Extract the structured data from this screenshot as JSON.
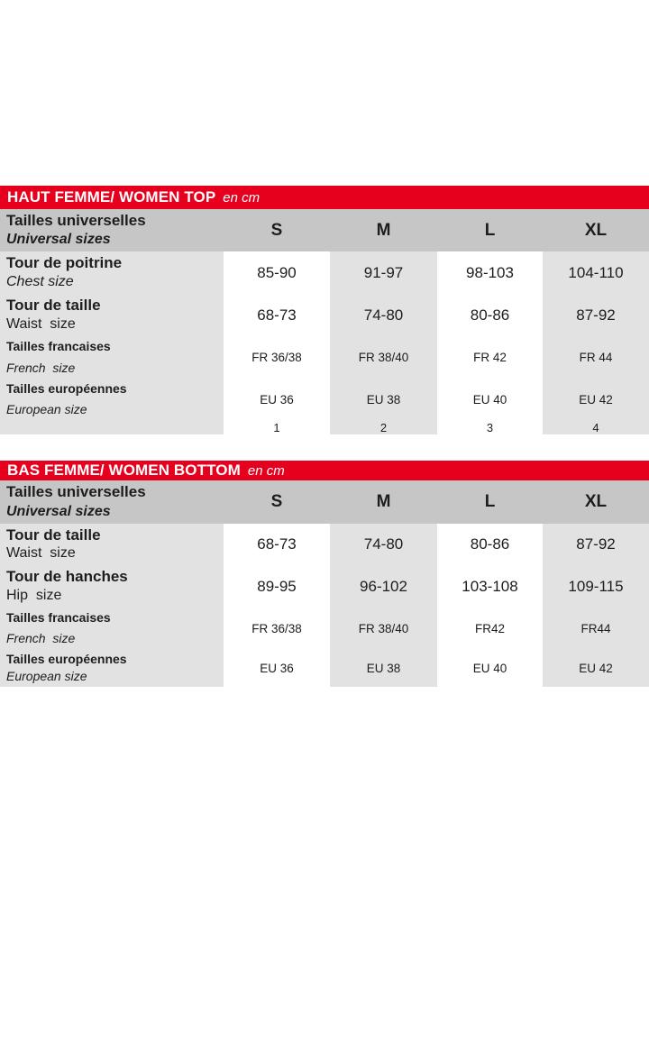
{
  "colors": {
    "accent_red": "#e7001e",
    "header_row_gray": "#c6c6c6",
    "column_gray": "#e2e2e2",
    "text": "#1d1d1b",
    "bar_text": "#ffffff"
  },
  "tables": [
    {
      "bar": {
        "title": "HAUT FEMME/ WOMEN TOP",
        "unit": "en cm"
      },
      "header": {
        "label": "Tailles universelles",
        "sublabel": "Universal sizes",
        "sizes": [
          "S",
          "M",
          "L",
          "XL"
        ]
      },
      "rows": [
        {
          "label": "Tour de poitrine",
          "sublabel": "Chest size",
          "values": [
            "85-90",
            "91-97",
            "98-103",
            "104-110"
          ]
        },
        {
          "label": "Tour de taille",
          "sublabel": "Waist  size",
          "values": [
            "68-73",
            "74-80",
            "80-86",
            "87-92"
          ]
        },
        {
          "label": "Tailles francaises",
          "sublabel": "French  size",
          "values": [
            "FR 36/38",
            "FR 38/40",
            "FR 42",
            "FR 44"
          ]
        },
        {
          "label": "Tailles européennes",
          "sublabel": "European size",
          "values": [
            "EU 36",
            "EU 38",
            "EU 40",
            "EU 42"
          ]
        },
        {
          "label": "",
          "sublabel": "",
          "values": [
            "1",
            "2",
            "3",
            "4"
          ]
        }
      ]
    },
    {
      "bar": {
        "title": "BAS FEMME/ WOMEN BOTTOM",
        "unit": "en cm"
      },
      "header": {
        "label": "Tailles universelles",
        "sublabel": "Universal sizes",
        "sizes": [
          "S",
          "M",
          "L",
          "XL"
        ]
      },
      "rows": [
        {
          "label": "Tour de taille",
          "sublabel": "Waist  size",
          "values": [
            "68-73",
            "74-80",
            "80-86",
            "87-92"
          ]
        },
        {
          "label": "Tour de hanches",
          "sublabel": "Hip  size",
          "values": [
            "89-95",
            "96-102",
            "103-108",
            "109-115"
          ]
        },
        {
          "label": "Tailles francaises",
          "sublabel": "French  size",
          "values": [
            "FR 36/38",
            "FR 38/40",
            "FR42",
            "FR44"
          ]
        },
        {
          "label": "Tailles européennes",
          "sublabel": "European size",
          "values": [
            "EU 36",
            "EU 38",
            "EU 40",
            "EU 42"
          ]
        }
      ]
    }
  ],
  "chart_data": [
    {
      "type": "table",
      "title": "HAUT FEMME/ WOMEN TOP en cm",
      "columns": [
        "",
        "S",
        "M",
        "L",
        "XL"
      ],
      "rows": [
        [
          "Tour de poitrine / Chest size",
          "85-90",
          "91-97",
          "98-103",
          "104-110"
        ],
        [
          "Tour de taille / Waist size",
          "68-73",
          "74-80",
          "80-86",
          "87-92"
        ],
        [
          "Tailles francaises / French size",
          "FR 36/38",
          "FR 38/40",
          "FR 42",
          "FR 44"
        ],
        [
          "Tailles européennes / European size",
          "EU 36",
          "EU 38",
          "EU 40",
          "EU 42"
        ],
        [
          "",
          "1",
          "2",
          "3",
          "4"
        ]
      ]
    },
    {
      "type": "table",
      "title": "BAS FEMME/ WOMEN BOTTOM en cm",
      "columns": [
        "",
        "S",
        "M",
        "L",
        "XL"
      ],
      "rows": [
        [
          "Tour de taille / Waist size",
          "68-73",
          "74-80",
          "80-86",
          "87-92"
        ],
        [
          "Tour de hanches / Hip size",
          "89-95",
          "96-102",
          "103-108",
          "109-115"
        ],
        [
          "Tailles francaises / French size",
          "FR 36/38",
          "FR 38/40",
          "FR42",
          "FR44"
        ],
        [
          "Tailles européennes / European size",
          "EU 36",
          "EU 38",
          "EU 40",
          "EU 42"
        ]
      ]
    }
  ]
}
